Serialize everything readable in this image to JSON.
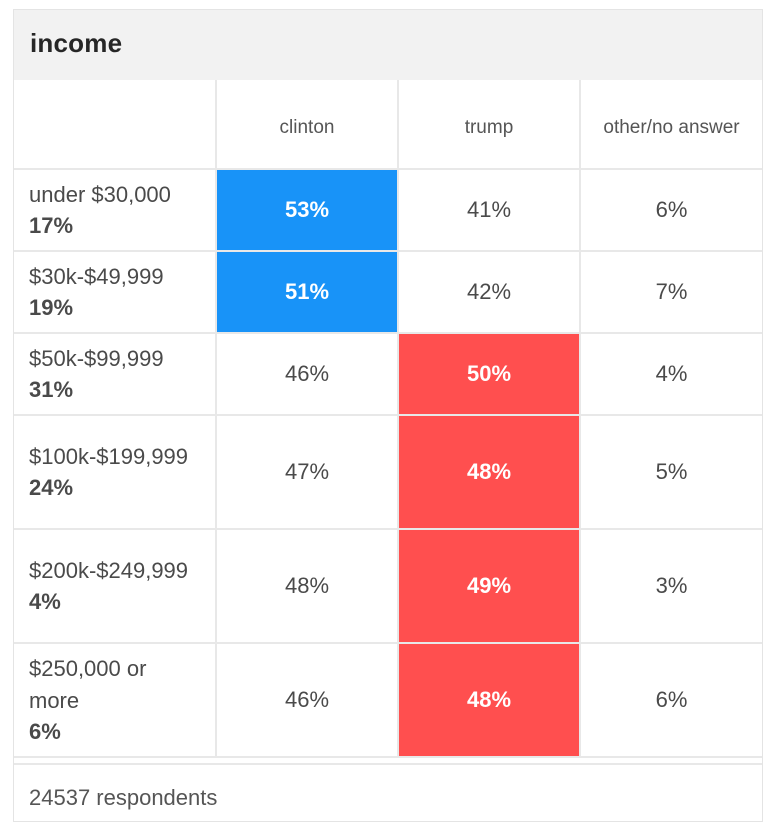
{
  "title": "income",
  "columns": [
    "",
    "clinton",
    "trump",
    "other/no answer"
  ],
  "colors": {
    "clinton": "#1893f8",
    "trump": "#ff4f4f"
  },
  "chart_data": {
    "type": "table",
    "title": "income",
    "categories": [
      "under $30,000",
      "$30k-$49,999",
      "$50k-$99,999",
      "$100k-$199,999",
      "$200k-$249,999",
      "$250,000 or more"
    ],
    "rows": [
      {
        "label": "under $30,000",
        "share": "17%",
        "values": [
          "53%",
          "41%",
          "6%"
        ],
        "winner": "clinton"
      },
      {
        "label": "$30k-$49,999",
        "share": "19%",
        "values": [
          "51%",
          "42%",
          "7%"
        ],
        "winner": "clinton"
      },
      {
        "label": "$50k-$99,999",
        "share": "31%",
        "values": [
          "46%",
          "50%",
          "4%"
        ],
        "winner": "trump"
      },
      {
        "label": "$100k-$199,999",
        "share": "24%",
        "values": [
          "47%",
          "48%",
          "5%"
        ],
        "winner": "trump"
      },
      {
        "label": "$200k-$249,999",
        "share": "4%",
        "values": [
          "48%",
          "49%",
          "3%"
        ],
        "winner": "trump"
      },
      {
        "label": "$250,000 or more",
        "share": "6%",
        "values": [
          "46%",
          "48%",
          "6%"
        ],
        "winner": "trump"
      }
    ],
    "series": [
      {
        "name": "clinton",
        "values": [
          53,
          51,
          46,
          47,
          48,
          46
        ]
      },
      {
        "name": "trump",
        "values": [
          41,
          42,
          50,
          48,
          49,
          48
        ]
      },
      {
        "name": "other/no answer",
        "values": [
          6,
          7,
          4,
          5,
          3,
          6
        ]
      }
    ]
  },
  "footer": "24537 respondents"
}
